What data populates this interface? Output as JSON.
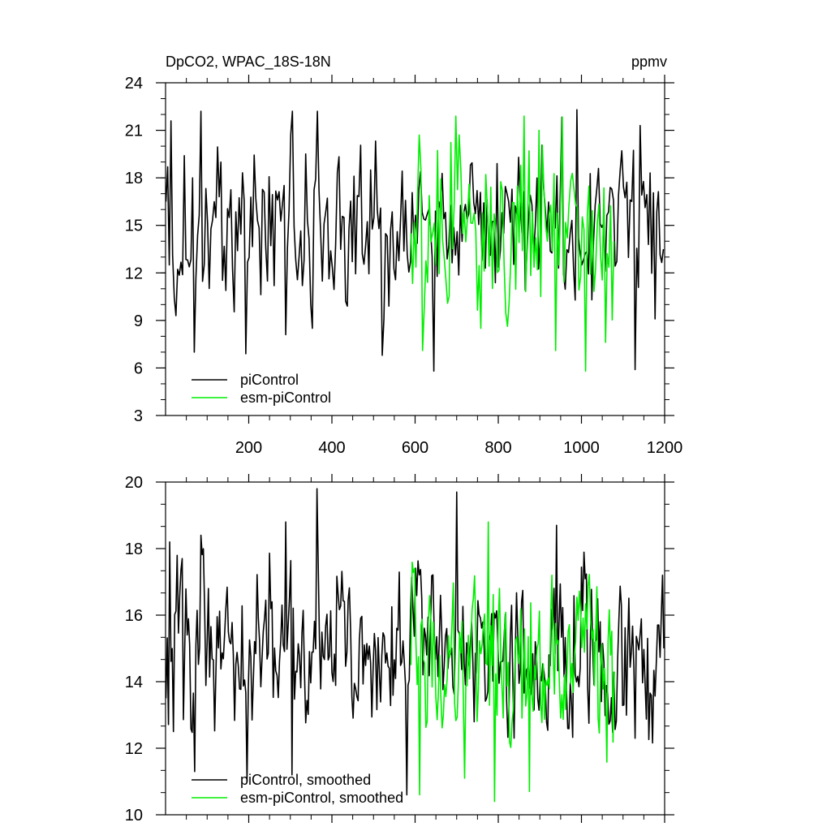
{
  "figure": {
    "title_left": "DpCO2, WPAC_18S-18N",
    "title_right": "ppmv"
  },
  "chart_data": [
    {
      "type": "line",
      "panel": "top",
      "xlim": [
        0,
        1200
      ],
      "ylim": [
        3,
        24
      ],
      "x_ticks": [
        200,
        400,
        600,
        800,
        1000,
        1200
      ],
      "x_tick_labels": [
        "200",
        "400",
        "600",
        "800",
        "1000",
        "1200"
      ],
      "y_ticks": [
        3,
        6,
        9,
        12,
        15,
        18,
        21,
        24
      ],
      "y_tick_labels": [
        "3",
        "6",
        "9",
        "12",
        "15",
        "18",
        "21",
        "24"
      ],
      "legend": {
        "placement": "bottom-left",
        "entries": [
          "piControl",
          "esm-piControl"
        ]
      },
      "series": [
        {
          "name": "piControl",
          "color": "#000000",
          "x_start": 1,
          "x_end": 1200,
          "sample_step": 4,
          "mean": 15.2,
          "std": 2.4,
          "min": 5.8,
          "max": 22.3,
          "anchor_points": [
            [
              1,
              16.5
            ],
            [
              8,
              12.5
            ],
            [
              14,
              21.6
            ],
            [
              26,
              9.3
            ],
            [
              45,
              19.4
            ],
            [
              70,
              7.0
            ],
            [
              85,
              22.2
            ],
            [
              195,
              6.9
            ],
            [
              290,
              8.1
            ],
            [
              305,
              22.2
            ],
            [
              355,
              8.5
            ],
            [
              365,
              22.2
            ],
            [
              520,
              6.8
            ],
            [
              645,
              5.8
            ],
            [
              990,
              22.3
            ],
            [
              1130,
              5.9
            ],
            [
              1140,
              21.3
            ],
            [
              1200,
              13.5
            ]
          ]
        },
        {
          "name": "esm-piControl",
          "color": "#00ee00",
          "x_start": 590,
          "x_end": 1080,
          "sample_step": 4,
          "mean": 14.8,
          "std": 3.0,
          "min": 5.8,
          "max": 21.9,
          "anchor_points": [
            [
              590,
              14.5
            ],
            [
              610,
              20.7
            ],
            [
              620,
              7.1
            ],
            [
              700,
              21.9
            ],
            [
              760,
              8.5
            ],
            [
              900,
              21.0
            ],
            [
              940,
              7.1
            ],
            [
              1010,
              5.8
            ],
            [
              1080,
              14.0
            ]
          ]
        }
      ]
    },
    {
      "type": "line",
      "panel": "bottom",
      "xlim": [
        0,
        1200
      ],
      "ylim": [
        10,
        20
      ],
      "x_ticks": [
        200,
        400,
        600,
        800,
        1000,
        1200
      ],
      "x_tick_labels": [],
      "y_ticks": [
        10,
        12,
        14,
        16,
        18,
        20
      ],
      "y_tick_labels": [
        "10",
        "12",
        "14",
        "16",
        "18",
        "20"
      ],
      "legend": {
        "placement": "bottom-left",
        "entries": [
          "piControl, smoothed",
          "esm-piControl, smoothed"
        ]
      },
      "series": [
        {
          "name": "piControl, smoothed",
          "color": "#000000",
          "x_start": 1,
          "x_end": 1200,
          "sample_step": 3,
          "mean": 15.0,
          "std": 1.4,
          "min": 10.5,
          "max": 19.8,
          "anchor_points": [
            [
              1,
              13.5
            ],
            [
              10,
              18.2
            ],
            [
              20,
              12.5
            ],
            [
              40,
              17.7
            ],
            [
              70,
              11.3
            ],
            [
              85,
              18.4
            ],
            [
              195,
              11.0
            ],
            [
              290,
              18.8
            ],
            [
              305,
              11.2
            ],
            [
              365,
              19.8
            ],
            [
              580,
              10.6
            ],
            [
              700,
              19.7
            ],
            [
              940,
              18.7
            ],
            [
              1130,
              12.3
            ],
            [
              1195,
              17.2
            ],
            [
              1200,
              15.0
            ]
          ]
        },
        {
          "name": "esm-piControl, smoothed",
          "color": "#00ee00",
          "x_start": 590,
          "x_end": 1080,
          "sample_step": 3,
          "mean": 14.8,
          "std": 1.6,
          "min": 10.4,
          "max": 18.8,
          "anchor_points": [
            [
              590,
              14.5
            ],
            [
              600,
              17.4
            ],
            [
              610,
              10.6
            ],
            [
              720,
              11.1
            ],
            [
              775,
              18.8
            ],
            [
              790,
              10.4
            ],
            [
              875,
              10.7
            ],
            [
              930,
              17.2
            ],
            [
              1080,
              14.3
            ]
          ]
        }
      ]
    }
  ]
}
